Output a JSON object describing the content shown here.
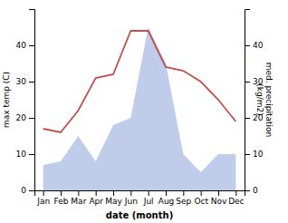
{
  "chart_data": {
    "type": "line",
    "xlabel": "date (month)",
    "ylabel": "max temp (C)",
    "y2label": "med. precipitation\n(kg/m2)",
    "categories": [
      "Jan",
      "Feb",
      "Mar",
      "Apr",
      "May",
      "Jun",
      "Jul",
      "Aug",
      "Sep",
      "Oct",
      "Nov",
      "Dec"
    ],
    "series": [
      {
        "type": "line",
        "color": "#c0504d",
        "values": [
          17,
          16,
          22,
          31,
          32,
          44,
          44,
          34,
          33,
          30,
          25,
          19
        ]
      },
      {
        "type": "area",
        "color": "#b8c8e8",
        "axis": "y2",
        "values": [
          7,
          8,
          15,
          8,
          18,
          20,
          45,
          35,
          10,
          5,
          10,
          10
        ]
      }
    ],
    "ylim": [
      0,
      50
    ],
    "yticks": [
      0,
      10,
      20,
      30,
      40
    ],
    "y2lim": [
      0,
      50
    ],
    "y2ticks": [
      0,
      10,
      20,
      30,
      40
    ]
  }
}
